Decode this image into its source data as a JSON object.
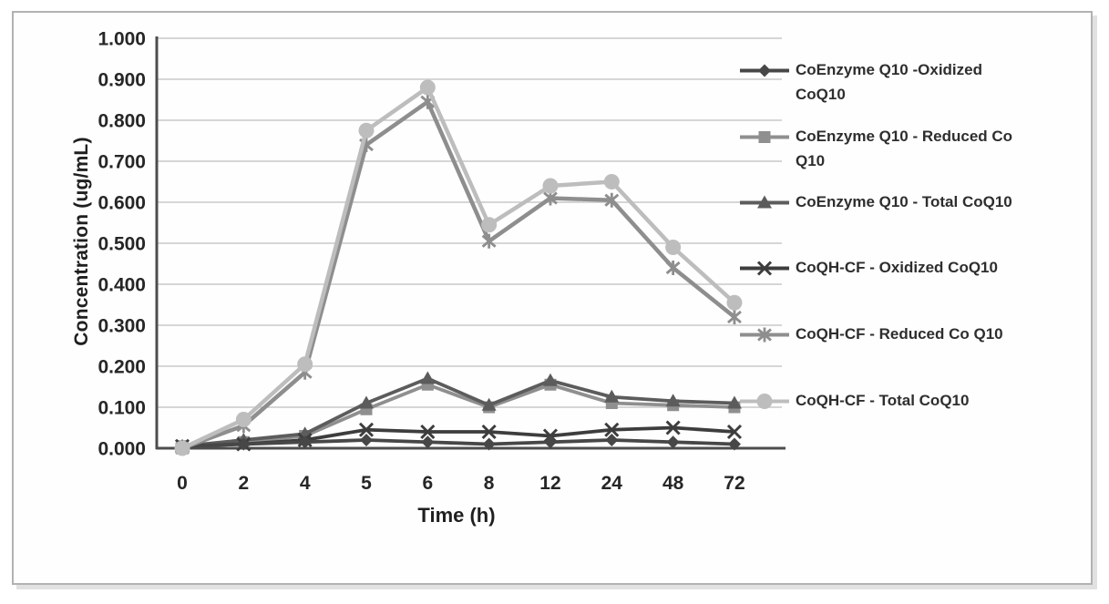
{
  "frame": {
    "border_color": "#b2b2b2",
    "background": "#fefefe"
  },
  "chart_data": {
    "type": "line",
    "title": "",
    "xlabel": "Time (h)",
    "ylabel": "Concentration (ug/mL)",
    "x_categories": [
      "0",
      "2",
      "4",
      "5",
      "6",
      "8",
      "12",
      "24",
      "48",
      "72"
    ],
    "y_tick_labels": [
      "0.000",
      "0.100",
      "0.200",
      "0.300",
      "0.400",
      "0.500",
      "0.600",
      "0.700",
      "0.800",
      "0.900",
      "1.000"
    ],
    "ylim": [
      0,
      1.0
    ],
    "y_tick_step": 0.1,
    "grid": true,
    "legend_position": "right",
    "axis_color": "#4d4d4d",
    "grid_color": "#c9c9c9",
    "series": [
      {
        "name": "CoEnzyme Q10 -Oxidized CoQ10",
        "marker": "diamond",
        "color": "#474747",
        "values": [
          0.005,
          0.01,
          0.015,
          0.02,
          0.015,
          0.01,
          0.015,
          0.02,
          0.015,
          0.01
        ]
      },
      {
        "name": "CoEnzyme Q10 - Reduced Co Q10",
        "marker": "square",
        "color": "#8f8f8f",
        "values": [
          0.005,
          0.015,
          0.03,
          0.095,
          0.155,
          0.1,
          0.155,
          0.11,
          0.105,
          0.1
        ]
      },
      {
        "name": "CoEnzyme Q10 - Total CoQ10",
        "marker": "triangle",
        "color": "#5c5c5c",
        "values": [
          0.005,
          0.02,
          0.035,
          0.11,
          0.17,
          0.105,
          0.165,
          0.125,
          0.115,
          0.11
        ]
      },
      {
        "name": "CoQH-CF - Oxidized CoQ10",
        "marker": "x",
        "color": "#3d3d3d",
        "values": [
          0.005,
          0.01,
          0.02,
          0.045,
          0.04,
          0.04,
          0.03,
          0.045,
          0.05,
          0.04
        ]
      },
      {
        "name": "CoQH-CF - Reduced Co Q10",
        "marker": "star",
        "color": "#8e8e8e",
        "values": [
          0.0,
          0.055,
          0.185,
          0.74,
          0.845,
          0.505,
          0.61,
          0.605,
          0.44,
          0.32
        ]
      },
      {
        "name": "CoQH-CF - Total CoQ10",
        "marker": "circle",
        "color": "#bdbdbd",
        "values": [
          0.0,
          0.07,
          0.205,
          0.775,
          0.88,
          0.545,
          0.64,
          0.65,
          0.49,
          0.355
        ]
      }
    ]
  }
}
